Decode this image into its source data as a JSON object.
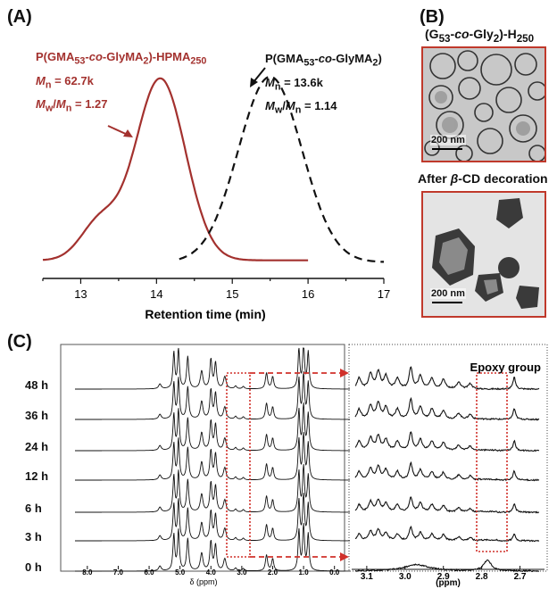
{
  "panels": {
    "a": "(A)",
    "b": "(B)",
    "c": "(C)"
  },
  "gpc": {
    "xlabel": "Retention time (min)",
    "x_ticks": [
      "13",
      "14",
      "15",
      "16",
      "17"
    ],
    "xlim": [
      12.5,
      17
    ],
    "copolymer": {
      "name_parts": [
        "P(GMA",
        "53",
        "-",
        "co",
        "-GlyMA",
        "2",
        ")-HPMA",
        "250"
      ],
      "mn_label": "M",
      "mn_sub": "n",
      "mn_value": " = 62.7k",
      "disp_label": "M",
      "disp_sub": "w",
      "disp_mid": "/",
      "disp_label2": "M",
      "disp_sub2": "n",
      "disp_value": " = 1.27",
      "color": "#a3312e",
      "peak_x": 14.05,
      "style": "solid"
    },
    "precursor": {
      "name_parts": [
        "P(GMA",
        "53",
        "-",
        "co",
        "-GlyMA",
        "2",
        ")"
      ],
      "mn_label": "M",
      "mn_sub": "n",
      "mn_value": " = 13.6k",
      "disp_label": "M",
      "disp_sub": "w",
      "disp_mid": "/",
      "disp_label2": "M",
      "disp_sub2": "n",
      "disp_value": " = 1.14",
      "color": "#111111",
      "peak_x": 15.5,
      "style": "dashed"
    }
  },
  "tem": {
    "top_title_parts": [
      "(G",
      "53",
      "-",
      "co",
      "-Gly",
      "2",
      ")-H",
      "250"
    ],
    "bottom_title_parts": [
      "After ",
      "β",
      "-CD decoration"
    ],
    "scale_label": "200 nm"
  },
  "nmr": {
    "xlabel": "δ (ppm)",
    "x_ticks": [
      "8.0",
      "7.0",
      "6.0",
      "5.0",
      "4.0",
      "3.0",
      "2.0",
      "1.0",
      "0.0"
    ],
    "times": [
      "48 h",
      "36 h",
      "24 h",
      "12 h",
      "6 h",
      "3 h",
      "0 h"
    ],
    "zoom_xlabel": "(ppm)",
    "zoom_x_ticks": [
      "3.1",
      "3.0",
      "2.9",
      "2.8",
      "2.7"
    ],
    "zoom_annotation": "Epoxy group",
    "highlight_color": "#d0302a"
  }
}
